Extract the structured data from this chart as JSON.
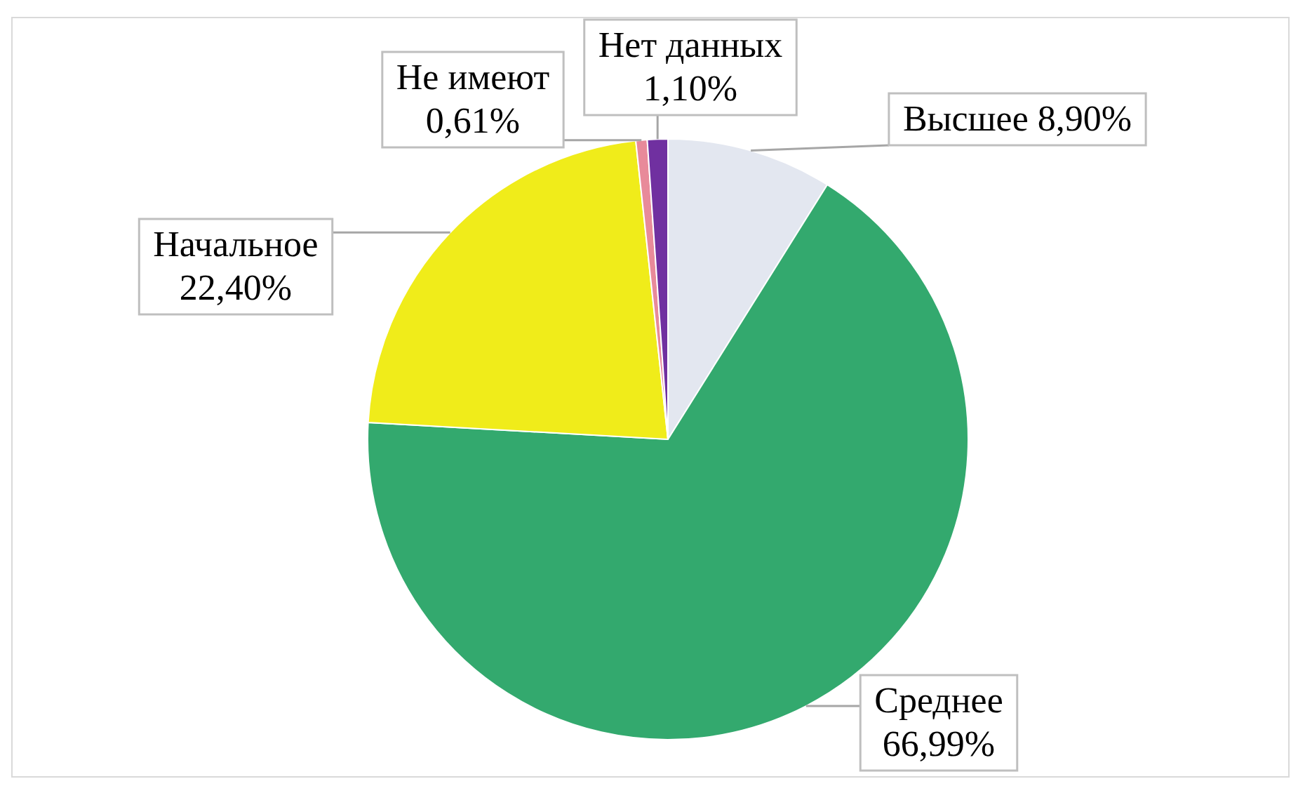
{
  "chart_data": {
    "type": "pie",
    "categories": [
      "Высшее",
      "Среднее",
      "Начальное",
      "Не имеют",
      "Нет данных"
    ],
    "values": [
      8.9,
      66.99,
      22.4,
      0.61,
      1.1
    ],
    "colors": [
      "#e3e7f0",
      "#33a96e",
      "#f0ec1a",
      "#e88a9a",
      "#7030a0"
    ],
    "value_labels": [
      "8,90%",
      "66,99%",
      "22,40%",
      "0,61%",
      "1,10%"
    ]
  }
}
